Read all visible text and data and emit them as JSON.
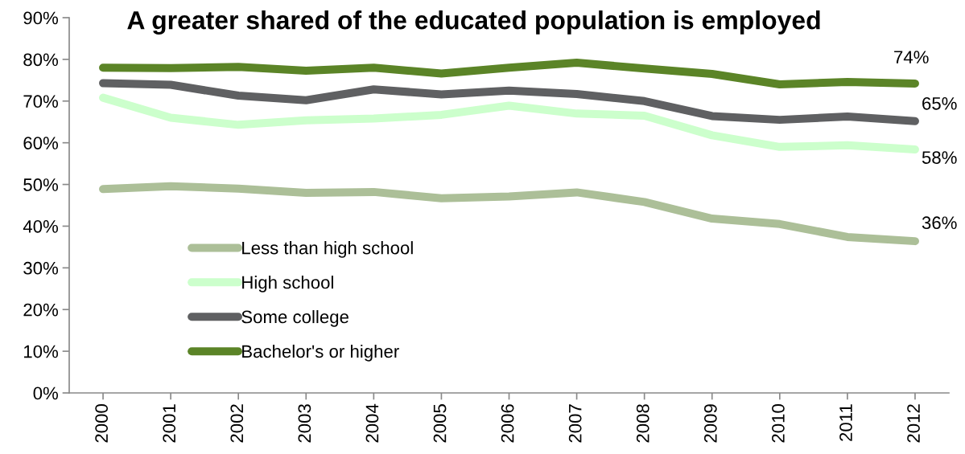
{
  "chart_data": {
    "type": "line",
    "title": "A greater shared of the educated population is employed",
    "categories": [
      "2000",
      "2001",
      "2002",
      "2003",
      "2004",
      "2005",
      "2006",
      "2007",
      "2008",
      "2009",
      "2010",
      "2011",
      "2012"
    ],
    "ylim": [
      0,
      90
    ],
    "yticks": [
      {
        "value": 0,
        "label": "0%"
      },
      {
        "value": 10,
        "label": "10%"
      },
      {
        "value": 20,
        "label": "20%"
      },
      {
        "value": 30,
        "label": "30%"
      },
      {
        "value": 40,
        "label": "40%"
      },
      {
        "value": 50,
        "label": "50%"
      },
      {
        "value": 60,
        "label": "60%"
      },
      {
        "value": 70,
        "label": "70%"
      },
      {
        "value": 80,
        "label": "80%"
      },
      {
        "value": 90,
        "label": "90%"
      }
    ],
    "grid": false,
    "legend": "bottom left",
    "marker": "none",
    "line_style": "solid",
    "series": [
      {
        "name": "Less than high school",
        "color": "#acbf98",
        "values": [
          48.9,
          49.6,
          49.0,
          48.0,
          48.2,
          46.7,
          47.1,
          48.1,
          45.8,
          41.8,
          40.5,
          37.4,
          36.4
        ],
        "value_labels": [
          null,
          null,
          null,
          null,
          null,
          null,
          null,
          null,
          null,
          null,
          null,
          null,
          "36%"
        ]
      },
      {
        "name": "High school",
        "color": "#ccffcc",
        "values": [
          70.8,
          66.0,
          64.3,
          65.4,
          65.8,
          66.7,
          68.9,
          67.0,
          66.5,
          61.8,
          59.0,
          59.4,
          58.4
        ],
        "value_labels": [
          null,
          null,
          null,
          null,
          null,
          null,
          null,
          null,
          null,
          null,
          null,
          null,
          "58%"
        ]
      },
      {
        "name": "Some college",
        "color": "#5f6062",
        "values": [
          74.3,
          73.9,
          71.3,
          70.2,
          72.8,
          71.6,
          72.5,
          71.7,
          70.0,
          66.4,
          65.5,
          66.3,
          65.2
        ],
        "value_labels": [
          null,
          null,
          null,
          null,
          null,
          null,
          null,
          null,
          null,
          null,
          null,
          null,
          "65%"
        ]
      },
      {
        "name": "Bachelor's or higher",
        "color": "#5b8427",
        "values": [
          78.0,
          77.9,
          78.2,
          77.3,
          78.0,
          76.6,
          78.0,
          79.2,
          77.8,
          76.5,
          74.0,
          74.6,
          74.2
        ],
        "value_labels": [
          null,
          null,
          null,
          null,
          null,
          null,
          null,
          null,
          null,
          null,
          null,
          null,
          "74%"
        ]
      }
    ]
  }
}
